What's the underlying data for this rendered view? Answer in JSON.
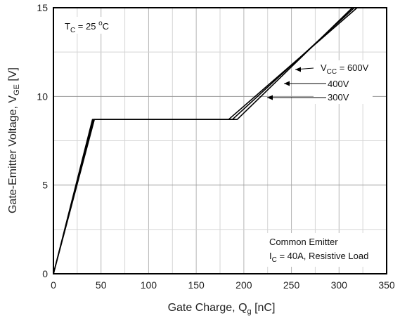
{
  "chart_data": {
    "type": "line",
    "xlabel": "Gate Charge, Q",
    "xlabel_sub": "g",
    "xlabel_unit": " [nC]",
    "ylabel": "Gate-Emitter Voltage, V",
    "ylabel_sub": "GE",
    "ylabel_unit": " [V]",
    "xlim": [
      0,
      350
    ],
    "ylim": [
      0,
      15
    ],
    "xticks": [
      "0",
      "50",
      "100",
      "150",
      "200",
      "250",
      "300",
      "350"
    ],
    "yticks": [
      "0",
      "5",
      "10",
      "15"
    ],
    "grid": true,
    "series": [
      {
        "name": "600V",
        "label_prefix": "V",
        "label_sub": "CC",
        "label_main": " = 600V",
        "points": [
          [
            0,
            0
          ],
          [
            43,
            8.7
          ],
          [
            193,
            8.7
          ],
          [
            314,
            15.0
          ]
        ]
      },
      {
        "name": "400V",
        "label_main": "400V",
        "points": [
          [
            0,
            0
          ],
          [
            42,
            8.7
          ],
          [
            188,
            8.7
          ],
          [
            316,
            15.0
          ]
        ]
      },
      {
        "name": "300V",
        "label_main": "300V",
        "points": [
          [
            0,
            0
          ],
          [
            41,
            8.7
          ],
          [
            184,
            8.7
          ],
          [
            319,
            15.0
          ]
        ]
      }
    ],
    "annotations": {
      "tc_prefix": "T",
      "tc_sub": "C",
      "tc_mid": " = 25 ",
      "tc_sup": "o",
      "tc_suffix": "C",
      "common_emitter": "Common Emitter",
      "ic_prefix": "I",
      "ic_sub": "C",
      "ic_suffix": " = 40A, Resistive Load"
    }
  }
}
